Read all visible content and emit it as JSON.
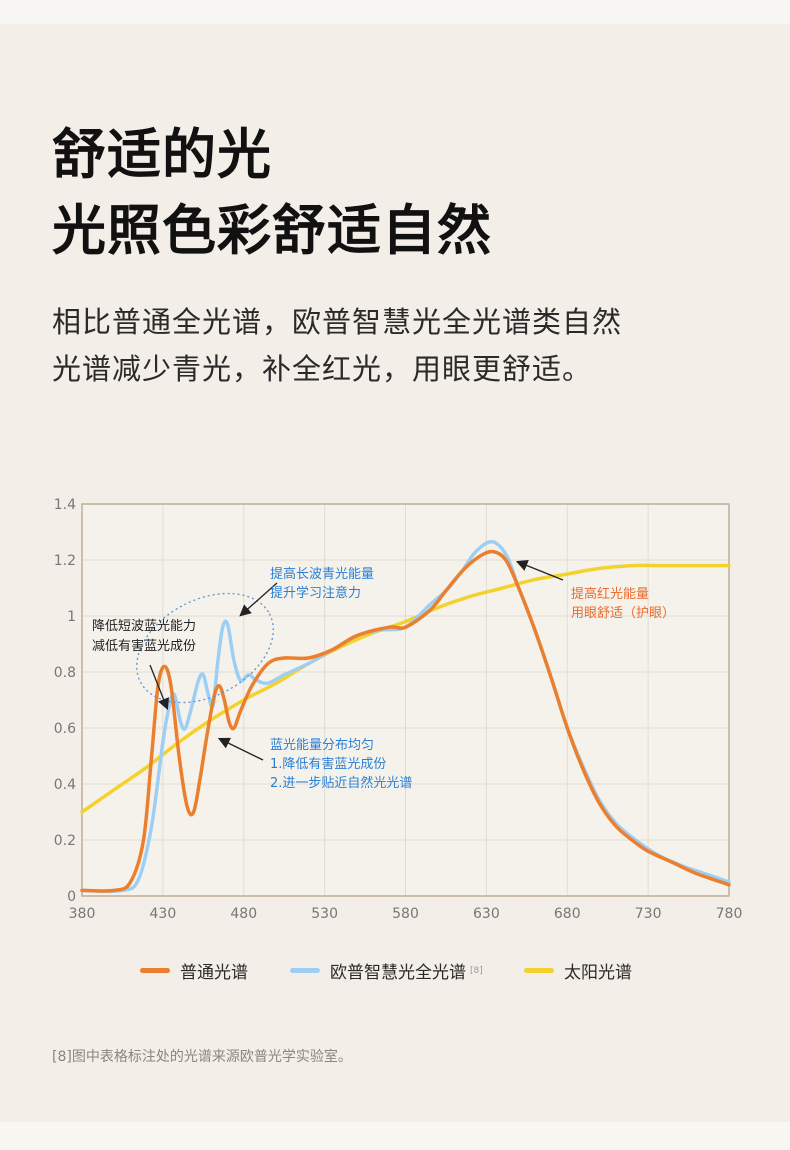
{
  "heading": {
    "line1": "舒适的光",
    "line2": "光照色彩舒适自然"
  },
  "subtitle": {
    "line1": "相比普通全光谱，欧普智慧光全光谱类自然",
    "line2": "光谱减少青光，补全红光，用眼更舒适。"
  },
  "legend": {
    "normal": "普通光谱",
    "opple": "欧普智慧光全光谱",
    "opple_ref": "[8]",
    "sun": "太阳光谱"
  },
  "footnote": "[8]图中表格标注处的光谱来源欧普光学实验室。",
  "colors": {
    "background": "#f3efe8",
    "normal": "#ec7f2e",
    "opple": "#9ccff3",
    "sun": "#f3d22e",
    "blue_annotation": "#2a7fd4",
    "orange_annotation": "#ec6a2a",
    "frame": "#bfae93"
  },
  "chart_data": {
    "type": "line",
    "title": "",
    "xlabel": "",
    "ylabel": "",
    "xlim": [
      380,
      780
    ],
    "ylim": [
      0,
      1.4
    ],
    "x_ticks": [
      380,
      430,
      480,
      530,
      580,
      630,
      680,
      730,
      780
    ],
    "y_ticks": [
      0,
      0.2,
      0.4,
      0.6,
      0.8,
      1,
      1.2,
      1.4
    ],
    "y_tick_labels": [
      "0",
      "0.2",
      "0.4",
      "0.6",
      "0.8",
      "1",
      "1.2",
      "1.4"
    ],
    "grid": true,
    "legend_position": "bottom",
    "series": [
      {
        "name": "普通光谱",
        "color": "#ec7f2e",
        "points": [
          [
            380,
            0.02
          ],
          [
            400,
            0.02
          ],
          [
            410,
            0.05
          ],
          [
            418,
            0.2
          ],
          [
            423,
            0.5
          ],
          [
            427,
            0.75
          ],
          [
            431,
            0.82
          ],
          [
            435,
            0.75
          ],
          [
            440,
            0.5
          ],
          [
            445,
            0.32
          ],
          [
            449,
            0.3
          ],
          [
            453,
            0.42
          ],
          [
            458,
            0.6
          ],
          [
            462,
            0.72
          ],
          [
            465,
            0.75
          ],
          [
            468,
            0.7
          ],
          [
            471,
            0.62
          ],
          [
            474,
            0.6
          ],
          [
            478,
            0.66
          ],
          [
            485,
            0.75
          ],
          [
            495,
            0.83
          ],
          [
            505,
            0.85
          ],
          [
            520,
            0.85
          ],
          [
            535,
            0.88
          ],
          [
            550,
            0.93
          ],
          [
            570,
            0.96
          ],
          [
            580,
            0.96
          ],
          [
            595,
            1.02
          ],
          [
            605,
            1.09
          ],
          [
            615,
            1.16
          ],
          [
            625,
            1.21
          ],
          [
            634,
            1.23
          ],
          [
            642,
            1.2
          ],
          [
            650,
            1.1
          ],
          [
            660,
            0.95
          ],
          [
            670,
            0.78
          ],
          [
            680,
            0.6
          ],
          [
            690,
            0.45
          ],
          [
            700,
            0.33
          ],
          [
            710,
            0.25
          ],
          [
            720,
            0.2
          ],
          [
            730,
            0.16
          ],
          [
            745,
            0.12
          ],
          [
            760,
            0.08
          ],
          [
            780,
            0.04
          ]
        ]
      },
      {
        "name": "欧普智慧光全光谱",
        "color": "#9ccff3",
        "points": [
          [
            380,
            0.02
          ],
          [
            405,
            0.02
          ],
          [
            415,
            0.06
          ],
          [
            423,
            0.25
          ],
          [
            430,
            0.55
          ],
          [
            434,
            0.68
          ],
          [
            437,
            0.72
          ],
          [
            441,
            0.62
          ],
          [
            444,
            0.6
          ],
          [
            448,
            0.68
          ],
          [
            452,
            0.77
          ],
          [
            455,
            0.79
          ],
          [
            458,
            0.72
          ],
          [
            461,
            0.68
          ],
          [
            464,
            0.84
          ],
          [
            467,
            0.96
          ],
          [
            470,
            0.97
          ],
          [
            474,
            0.84
          ],
          [
            478,
            0.77
          ],
          [
            483,
            0.79
          ],
          [
            488,
            0.77
          ],
          [
            495,
            0.76
          ],
          [
            505,
            0.79
          ],
          [
            520,
            0.83
          ],
          [
            535,
            0.88
          ],
          [
            550,
            0.93
          ],
          [
            565,
            0.95
          ],
          [
            580,
            0.96
          ],
          [
            595,
            1.04
          ],
          [
            605,
            1.09
          ],
          [
            615,
            1.16
          ],
          [
            622,
            1.22
          ],
          [
            630,
            1.26
          ],
          [
            636,
            1.26
          ],
          [
            643,
            1.21
          ],
          [
            650,
            1.1
          ],
          [
            660,
            0.95
          ],
          [
            670,
            0.78
          ],
          [
            680,
            0.6
          ],
          [
            690,
            0.46
          ],
          [
            700,
            0.34
          ],
          [
            710,
            0.26
          ],
          [
            720,
            0.21
          ],
          [
            735,
            0.15
          ],
          [
            750,
            0.11
          ],
          [
            765,
            0.08
          ],
          [
            780,
            0.05
          ]
        ]
      },
      {
        "name": "太阳光谱",
        "color": "#f3d22e",
        "points": [
          [
            380,
            0.3
          ],
          [
            400,
            0.38
          ],
          [
            420,
            0.46
          ],
          [
            440,
            0.55
          ],
          [
            460,
            0.63
          ],
          [
            480,
            0.7
          ],
          [
            500,
            0.76
          ],
          [
            520,
            0.83
          ],
          [
            540,
            0.89
          ],
          [
            560,
            0.94
          ],
          [
            580,
            0.98
          ],
          [
            600,
            1.03
          ],
          [
            620,
            1.07
          ],
          [
            640,
            1.1
          ],
          [
            660,
            1.13
          ],
          [
            680,
            1.15
          ],
          [
            700,
            1.17
          ],
          [
            720,
            1.18
          ],
          [
            740,
            1.18
          ],
          [
            760,
            1.18
          ],
          [
            780,
            1.18
          ]
        ]
      }
    ],
    "annotations": {
      "short_blue": "降低短波蓝光能力\n减低有害蓝光成份",
      "long_blue": "提高长波青光能量\n提升学习注意力",
      "even_blue": "蓝光能量分布均匀\n1.降低有害蓝光成份\n2.进一步贴近自然光光谱",
      "red": "提高红光能量\n用眼舒适（护眼）"
    }
  }
}
